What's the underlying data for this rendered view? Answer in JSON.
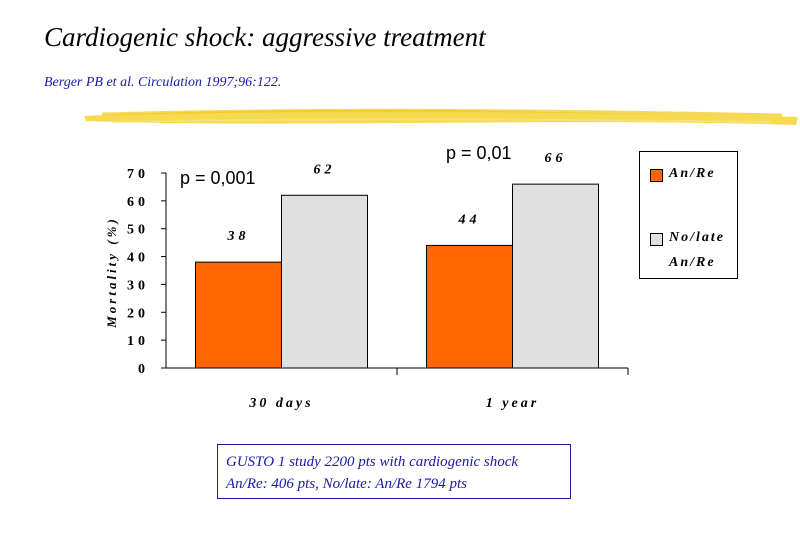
{
  "slide": {
    "title": "Cardiogenic shock: aggressive treatment",
    "citation": "Berger PB et al. Circulation 1997;96:122."
  },
  "colors": {
    "series_1": "#ff6600",
    "series_2": "#e0e0e0",
    "citation": "#1a1aa8",
    "highlight_stroke": "#f5d63c"
  },
  "chart_data": {
    "type": "bar",
    "categories": [
      "30  days",
      "1  year"
    ],
    "series": [
      {
        "name": "An/Re",
        "values": [
          38,
          44
        ]
      },
      {
        "name": "No/late An/Re",
        "values": [
          62,
          66
        ]
      }
    ],
    "data_labels": [
      [
        "38",
        "62"
      ],
      [
        "44",
        "66"
      ]
    ],
    "ylabel": "Mortality (%)",
    "ylim": [
      0,
      70
    ],
    "yticks": [
      "0",
      "10",
      "20",
      "30",
      "40",
      "50",
      "60",
      "70"
    ],
    "annotations": [
      "p = 0,001",
      "p = 0,01"
    ],
    "grid": false,
    "legend_position": "right"
  },
  "legend": {
    "items": [
      {
        "label": "An/Re"
      },
      {
        "label": "No/late An/Re"
      }
    ]
  },
  "note": {
    "line1": "GUSTO 1 study 2200 pts with cardiogenic shock",
    "line2": "An/Re: 406 pts,  No/late: An/Re 1794 pts"
  }
}
